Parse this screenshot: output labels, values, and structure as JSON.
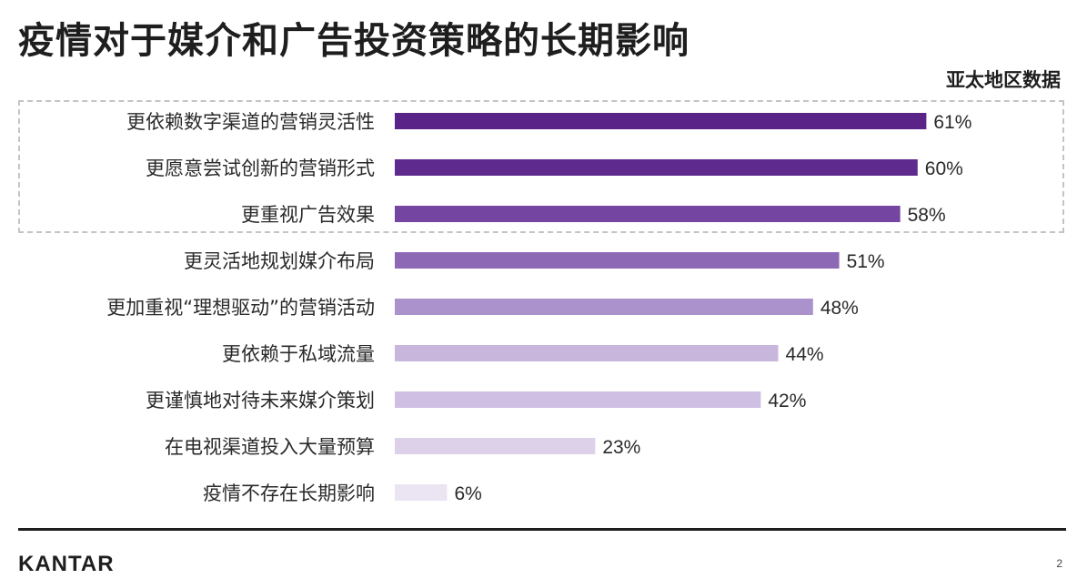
{
  "page": {
    "title": "疫情对于媒介和广告投资策略的长期影响",
    "region_label": "亚太地区数据",
    "logo": "KANTAR",
    "page_number": "2"
  },
  "chart_data": {
    "type": "bar",
    "orientation": "horizontal",
    "categories": [
      "更依赖数字渠道的营销灵活性",
      "更愿意尝试创新的营销形式",
      "更重视广告效果",
      "更灵活地规划媒介布局",
      "更加重视“理想驱动”的营销活动",
      "更依赖于私域流量",
      "更谨慎地对待未来媒介策划",
      "在电视渠道投入大量预算",
      "疫情不存在长期影响"
    ],
    "values": [
      61,
      60,
      58,
      51,
      48,
      44,
      42,
      23,
      6
    ],
    "value_labels": [
      "61%",
      "60%",
      "58%",
      "51%",
      "48%",
      "44%",
      "42%",
      "23%",
      "6%"
    ],
    "bar_colors": [
      "#5a2388",
      "#5f2a8d",
      "#7445a1",
      "#8d69b5",
      "#ab92cc",
      "#c8b6dd",
      "#cfbfe2",
      "#ddd1ea",
      "#ebe4f2"
    ],
    "xlim": [
      0,
      100
    ],
    "highlighted_categories": 3,
    "grid": false,
    "legend": "none"
  }
}
